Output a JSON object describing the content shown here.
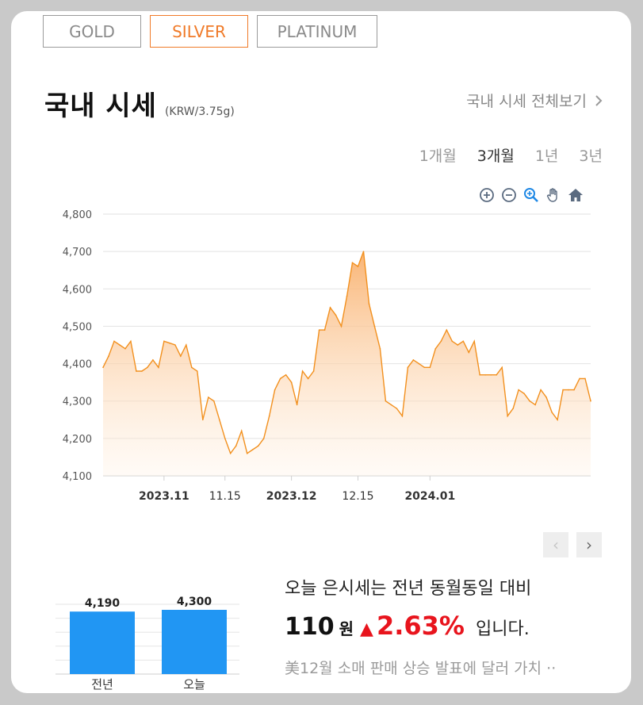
{
  "metal_tabs": [
    {
      "label": "GOLD",
      "active": false
    },
    {
      "label": "SILVER",
      "active": true
    },
    {
      "label": "PLATINUM",
      "active": false
    }
  ],
  "header": {
    "title": "국내 시세",
    "unit": "(KRW/3.75g)",
    "view_all": "국내 시세 전체보기"
  },
  "periods": [
    {
      "label": "1개월",
      "active": false
    },
    {
      "label": "3개월",
      "active": true
    },
    {
      "label": "1년",
      "active": false
    },
    {
      "label": "3년",
      "active": false
    }
  ],
  "toolbar_icons": [
    "zoom-in-icon",
    "zoom-out-icon",
    "zoom-select-icon",
    "pan-hand-icon",
    "home-icon"
  ],
  "colors": {
    "accent": "#f07a28",
    "line": "#f2901e",
    "fill_top": "#f9b16e",
    "bar": "#2196f3",
    "up": "#e8141d"
  },
  "chart_data": {
    "type": "area",
    "title": "",
    "xlabel": "",
    "ylabel": "",
    "ylim": [
      4100,
      4800
    ],
    "yticks": [
      "4,800",
      "4,700",
      "4,600",
      "4,500",
      "4,400",
      "4,300",
      "4,200",
      "4,100"
    ],
    "xticks": [
      {
        "label": "2023.11",
        "bold": true,
        "index": 11
      },
      {
        "label": "11.15",
        "bold": false,
        "index": 22
      },
      {
        "label": "2023.12",
        "bold": true,
        "index": 34
      },
      {
        "label": "12.15",
        "bold": false,
        "index": 46
      },
      {
        "label": "2024.01",
        "bold": true,
        "index": 59
      }
    ],
    "grid": true,
    "values": [
      4390,
      4420,
      4460,
      4450,
      4440,
      4460,
      4380,
      4380,
      4390,
      4410,
      4390,
      4460,
      4455,
      4450,
      4420,
      4450,
      4390,
      4380,
      4250,
      4310,
      4300,
      4250,
      4200,
      4160,
      4180,
      4220,
      4160,
      4170,
      4180,
      4200,
      4260,
      4330,
      4360,
      4370,
      4350,
      4290,
      4380,
      4360,
      4380,
      4490,
      4490,
      4550,
      4530,
      4500,
      4580,
      4670,
      4660,
      4700,
      4560,
      4500,
      4440,
      4300,
      4290,
      4280,
      4260,
      4390,
      4410,
      4400,
      4390,
      4390,
      4440,
      4460,
      4490,
      4460,
      4450,
      4460,
      4430,
      4460,
      4370,
      4370,
      4370,
      4370,
      4390,
      4260,
      4280,
      4330,
      4320,
      4300,
      4290,
      4330,
      4310,
      4270,
      4250,
      4330,
      4330,
      4330,
      4360,
      4360,
      4300
    ]
  },
  "mini_chart": {
    "type": "bar",
    "categories": [
      "전년",
      "오늘"
    ],
    "values": [
      4190,
      4300
    ],
    "labels": [
      "4,190",
      "4,300"
    ]
  },
  "summary": {
    "line1": "오늘 은시세는 전년 동월동일 대비",
    "diff_value": "110",
    "diff_unit": "원",
    "arrow": "▲",
    "pct": "2.63%",
    "tail": "입니다.",
    "news": "美12월 소매 판매 상승 발표에 달러 가치 ··"
  },
  "pager": {
    "prev": "‹",
    "next": "›"
  }
}
